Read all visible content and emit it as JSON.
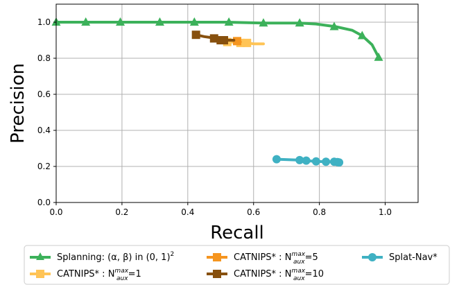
{
  "chart_data": {
    "type": "line",
    "xlabel": "Recall",
    "ylabel": "Precision",
    "xlim": [
      0.0,
      1.1
    ],
    "ylim": [
      0.0,
      1.1
    ],
    "xticks": [
      "0.0",
      "0.2",
      "0.4",
      "0.6",
      "0.8",
      "1.0"
    ],
    "yticks": [
      "0.0",
      "0.2",
      "0.4",
      "0.6",
      "0.8",
      "1.0"
    ],
    "grid": true,
    "legend_placement": "bottom-outside",
    "series": [
      {
        "name": "Splanning: (α, β) in (0, 1)²",
        "color": "#3cb15a",
        "marker": "triangle",
        "line": {
          "x": [
            0.0,
            0.08,
            0.2,
            0.31,
            0.42,
            0.52,
            0.63,
            0.74,
            0.79,
            0.85,
            0.9,
            0.93,
            0.96,
            0.98
          ],
          "y": [
            1.0,
            1.0,
            1.0,
            1.0,
            1.0,
            1.0,
            0.995,
            0.995,
            0.99,
            0.975,
            0.955,
            0.925,
            0.875,
            0.805
          ]
        },
        "marker_points": {
          "x": [
            0.0,
            0.09,
            0.195,
            0.315,
            0.42,
            0.525,
            0.63,
            0.74,
            0.845,
            0.93,
            0.98
          ],
          "y": [
            1.0,
            1.0,
            1.0,
            1.0,
            1.0,
            1.0,
            0.995,
            0.995,
            0.975,
            0.925,
            0.805
          ]
        }
      },
      {
        "name": "CATNIPS* : N_aux^max=1",
        "color": "#ffc456",
        "marker": "square",
        "line": {
          "x": [
            0.49,
            0.52,
            0.54,
            0.56,
            0.58,
            0.6,
            0.63
          ],
          "y": [
            0.9,
            0.89,
            0.89,
            0.885,
            0.885,
            0.88,
            0.88
          ]
        },
        "marker_points": {
          "x": [
            0.52,
            0.56,
            0.58
          ],
          "y": [
            0.89,
            0.885,
            0.885
          ]
        }
      },
      {
        "name": "CATNIPS* : N_aux^max=5",
        "color": "#f5951f",
        "marker": "square",
        "line": {
          "x": [
            0.49,
            0.51,
            0.53,
            0.55,
            0.56
          ],
          "y": [
            0.9,
            0.9,
            0.9,
            0.895,
            0.89
          ]
        },
        "marker_points": {
          "x": [
            0.51,
            0.55
          ],
          "y": [
            0.9,
            0.895
          ]
        }
      },
      {
        "name": "CATNIPS* : N_aux^max=10",
        "color": "#87500e",
        "marker": "square",
        "line": {
          "x": [
            0.425,
            0.45,
            0.47,
            0.48,
            0.49,
            0.5,
            0.51,
            0.53,
            0.54
          ],
          "y": [
            0.93,
            0.92,
            0.915,
            0.91,
            0.905,
            0.9,
            0.9,
            0.9,
            0.9
          ]
        },
        "marker_points": {
          "x": [
            0.425,
            0.48,
            0.5,
            0.51
          ],
          "y": [
            0.93,
            0.91,
            0.9,
            0.9
          ]
        }
      },
      {
        "name": "Splat-Nav*",
        "color": "#3fb1c3",
        "marker": "circle",
        "line": {
          "x": [
            0.67,
            0.74,
            0.76,
            0.79,
            0.82,
            0.845,
            0.855,
            0.86
          ],
          "y": [
            0.24,
            0.235,
            0.232,
            0.228,
            0.226,
            0.226,
            0.224,
            0.222
          ]
        },
        "marker_points": {
          "x": [
            0.67,
            0.74,
            0.76,
            0.79,
            0.82,
            0.845,
            0.855,
            0.86
          ],
          "y": [
            0.24,
            0.235,
            0.232,
            0.228,
            0.226,
            0.226,
            0.224,
            0.222
          ]
        }
      }
    ]
  }
}
